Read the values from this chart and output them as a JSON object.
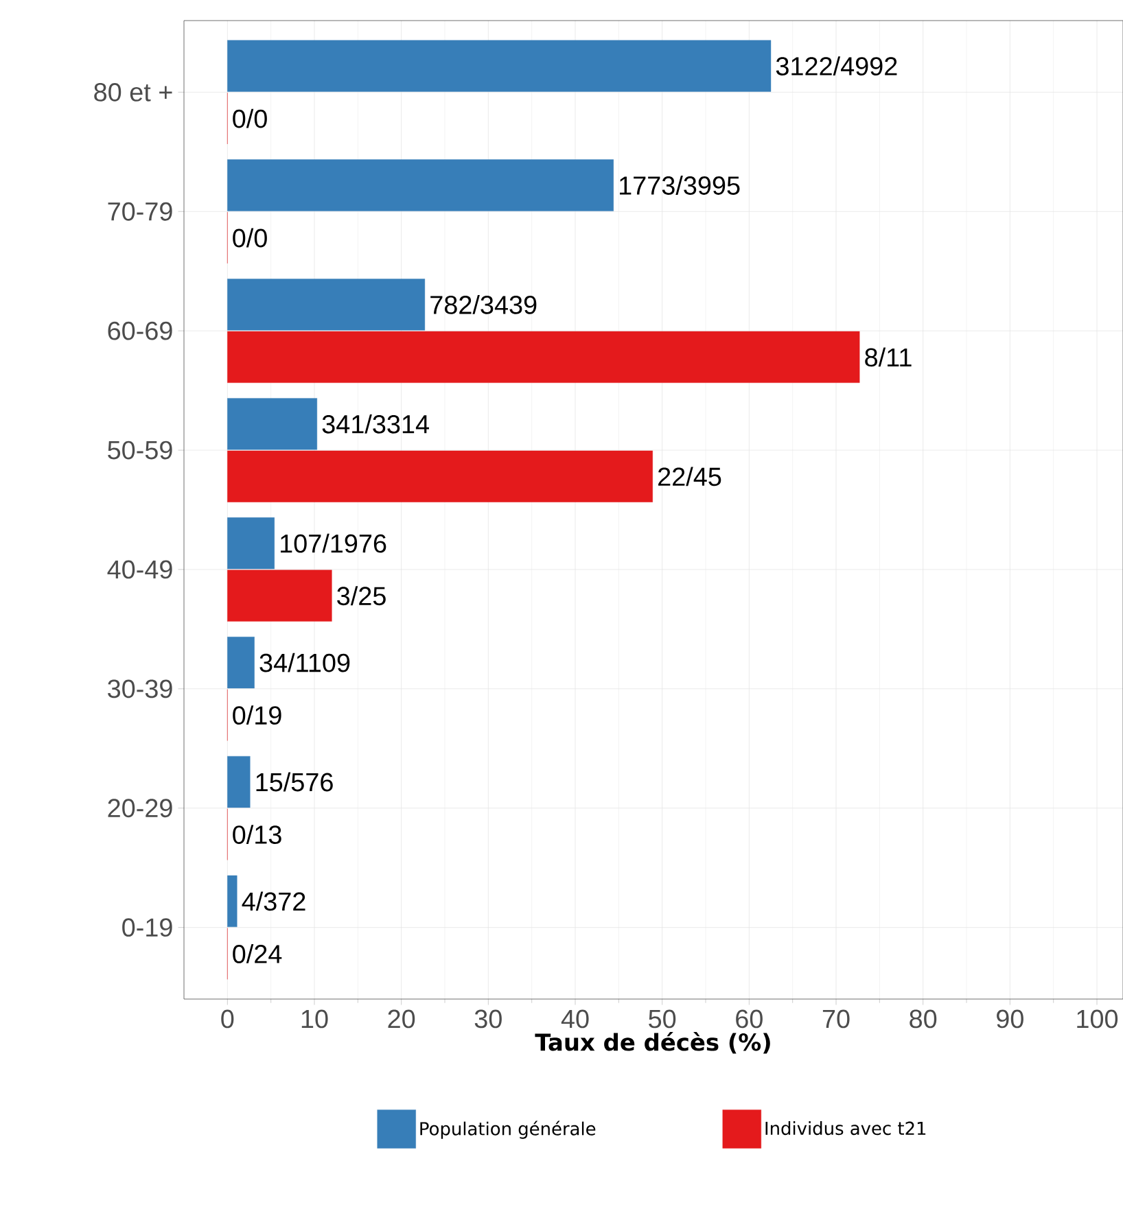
{
  "chart_data": {
    "type": "bar",
    "orientation": "horizontal",
    "xlabel": "Taux de décès (%)",
    "xlim": [
      -5,
      103
    ],
    "xticks": [
      0,
      10,
      20,
      30,
      40,
      50,
      60,
      70,
      80,
      90,
      100
    ],
    "grid": true,
    "legend": "bottom",
    "categories": [
      "80 et +",
      "70-79",
      "60-69",
      "50-59",
      "40-49",
      "30-39",
      "20-29",
      "0-19"
    ],
    "series": [
      {
        "name": "Population générale",
        "color": "#377eb8",
        "values": [
          62.5,
          44.4,
          22.7,
          10.3,
          5.4,
          3.1,
          2.6,
          1.1
        ],
        "value_labels": [
          "3122/4992",
          "1773/3995",
          "782/3439",
          "341/3314",
          "107/1976",
          "34/1109",
          "15/576",
          "4/372"
        ]
      },
      {
        "name": "Individus avec t21",
        "color": "#e41a1c",
        "values": [
          0,
          0,
          72.7,
          48.9,
          12,
          0,
          0,
          0
        ],
        "value_labels": [
          "0/0",
          "0/0",
          "8/11",
          "22/45",
          "3/25",
          "0/19",
          "0/13",
          "0/24"
        ]
      }
    ]
  }
}
